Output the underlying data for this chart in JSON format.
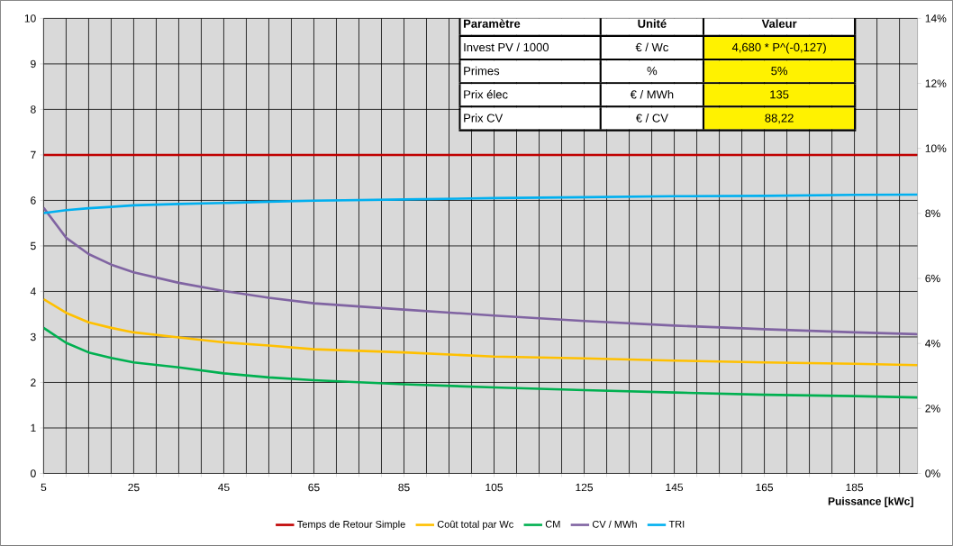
{
  "chart_data": {
    "type": "line",
    "xlabel": "Puissance [kWc]",
    "x": [
      5,
      10,
      15,
      20,
      25,
      35,
      45,
      55,
      65,
      85,
      105,
      125,
      145,
      165,
      185,
      199
    ],
    "series": [
      {
        "name": "Temps de Retour Simple",
        "color": "#c00000",
        "values": [
          7,
          7,
          7,
          7,
          7,
          7,
          7,
          7,
          7,
          7,
          7,
          7,
          7,
          7,
          7,
          7
        ]
      },
      {
        "name": "Coût total par Wc",
        "color": "#ffc000",
        "values": [
          3.83,
          3.53,
          3.32,
          3.2,
          3.1,
          2.99,
          2.88,
          2.81,
          2.73,
          2.66,
          2.57,
          2.53,
          2.48,
          2.44,
          2.41,
          2.38
        ]
      },
      {
        "name": "CM",
        "color": "#00b050",
        "values": [
          3.2,
          2.87,
          2.66,
          2.54,
          2.44,
          2.33,
          2.2,
          2.11,
          2.05,
          1.96,
          1.89,
          1.83,
          1.78,
          1.73,
          1.7,
          1.67
        ]
      },
      {
        "name": "CV / MWh",
        "color": "#8064a2",
        "values": [
          5.84,
          5.18,
          4.82,
          4.59,
          4.42,
          4.19,
          4.01,
          3.86,
          3.74,
          3.6,
          3.47,
          3.35,
          3.25,
          3.17,
          3.1,
          3.06
        ]
      },
      {
        "name": "TRI",
        "color": "#00b0f0",
        "axis": "y2",
        "values": [
          8.01,
          8.1,
          8.16,
          8.2,
          8.25,
          8.29,
          8.32,
          8.36,
          8.39,
          8.43,
          8.47,
          8.5,
          8.53,
          8.54,
          8.57,
          8.58
        ]
      }
    ],
    "xlim": [
      5,
      199
    ],
    "xticks": [
      5,
      {
        "value": 10,
        "label": null
      },
      {
        "value": 15,
        "label": null
      },
      {
        "value": 20,
        "label": null
      },
      25,
      {
        "value": 30,
        "label": null
      },
      {
        "value": 35,
        "label": null
      },
      {
        "value": 40,
        "label": null
      },
      45,
      {
        "value": 50,
        "label": null
      },
      {
        "value": 55,
        "label": null
      },
      {
        "value": 60,
        "label": null
      },
      65,
      {
        "value": 70,
        "label": null
      },
      {
        "value": 75,
        "label": null
      },
      {
        "value": 80,
        "label": null
      },
      85,
      {
        "value": 90,
        "label": null
      },
      {
        "value": 95,
        "label": null
      },
      {
        "value": 100,
        "label": null
      },
      105,
      {
        "value": 110,
        "label": null
      },
      {
        "value": 115,
        "label": null
      },
      {
        "value": 120,
        "label": null
      },
      125,
      {
        "value": 130,
        "label": null
      },
      {
        "value": 135,
        "label": null
      },
      {
        "value": 140,
        "label": null
      },
      145,
      {
        "value": 150,
        "label": null
      },
      {
        "value": 155,
        "label": null
      },
      {
        "value": 160,
        "label": null
      },
      165,
      {
        "value": 170,
        "label": null
      },
      {
        "value": 175,
        "label": null
      },
      {
        "value": 180,
        "label": null
      },
      185,
      {
        "value": 190,
        "label": null
      },
      {
        "value": 195,
        "label": null
      }
    ],
    "ylim": [
      0,
      10
    ],
    "yticks": [
      0,
      1,
      2,
      3,
      4,
      5,
      6,
      7,
      8,
      9,
      10
    ],
    "y2lim": [
      0,
      14
    ],
    "y2ticks": [
      {
        "value": 0,
        "label": "0%"
      },
      {
        "value": 2,
        "label": "2%"
      },
      {
        "value": 4,
        "label": "4%"
      },
      {
        "value": 6,
        "label": "6%"
      },
      {
        "value": 8,
        "label": "8%"
      },
      {
        "value": 10,
        "label": "10%"
      },
      {
        "value": 12,
        "label": "12%"
      },
      {
        "value": 14,
        "label": "14%"
      }
    ],
    "grid": true,
    "legend": "bottom",
    "marker": "none",
    "line_style": "solid",
    "annotations": [
      "Paramètre",
      "Unité",
      "Valeur",
      "Invest PV / 1000",
      "€ / Wc",
      "4,680 * P^(-0,127)",
      "Primes",
      "%",
      "5%",
      "Prix élec",
      "€ / MWh",
      "135",
      "Prix CV",
      "€ / CV",
      "88,22"
    ]
  }
}
